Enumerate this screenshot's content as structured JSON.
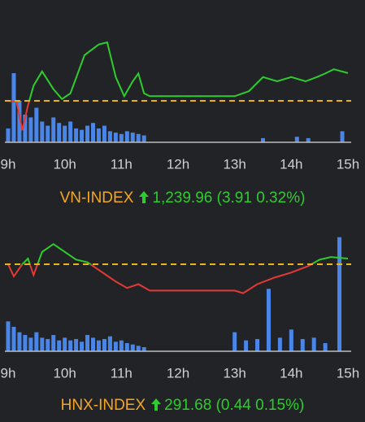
{
  "chart_data": [
    {
      "type": "line",
      "title": "VN-INDEX",
      "last_label": "1,239.96",
      "change_label": "(3.91 0.32%)",
      "x": [
        9.0,
        9.15,
        9.25,
        9.35,
        9.45,
        9.6,
        9.8,
        9.95,
        10.1,
        10.35,
        10.6,
        10.75,
        10.9,
        11.05,
        11.2,
        11.3,
        11.4,
        11.5,
        13.0,
        13.25,
        13.5,
        13.75,
        14.0,
        14.25,
        14.45,
        14.6,
        14.75,
        15.0
      ],
      "values": [
        1236.05,
        1235.9,
        1231.9,
        1235.4,
        1238.2,
        1240.2,
        1237.7,
        1236.3,
        1237.1,
        1242.5,
        1244.0,
        1244.3,
        1239.4,
        1236.7,
        1238.8,
        1239.9,
        1237.1,
        1236.7,
        1236.7,
        1237.4,
        1239.4,
        1238.8,
        1239.4,
        1238.8,
        1239.4,
        1239.9,
        1240.5,
        1239.96
      ],
      "reference": 1236.05,
      "up_color": "#2ecc2e",
      "down_color": "#e53935",
      "reference_color": "#e6b422",
      "xlim": [
        9,
        15
      ],
      "ylim": [
        1230.2,
        1249.7
      ],
      "xticks": [
        {
          "value": 9,
          "label": "9h"
        },
        {
          "value": 10,
          "label": "10h"
        },
        {
          "value": 11,
          "label": "11h"
        },
        {
          "value": 12,
          "label": "12h"
        },
        {
          "value": 13,
          "label": "13h"
        },
        {
          "value": 14,
          "label": "14h"
        },
        {
          "value": 15,
          "label": "15h"
        }
      ],
      "volume": {
        "color": "#4a86e8",
        "x": [
          9.0,
          9.1,
          9.2,
          9.3,
          9.4,
          9.5,
          9.6,
          9.7,
          9.8,
          9.9,
          10.0,
          10.1,
          10.2,
          10.3,
          10.4,
          10.5,
          10.6,
          10.7,
          10.8,
          10.9,
          11.0,
          11.1,
          11.2,
          11.3,
          11.4,
          13.5,
          14.1,
          14.3,
          14.9
        ],
        "values": [
          10,
          50,
          30,
          20,
          18,
          25,
          15,
          12,
          18,
          14,
          12,
          15,
          10,
          9,
          12,
          14,
          10,
          12,
          8,
          7,
          6,
          8,
          7,
          6,
          5,
          3,
          4,
          3,
          8
        ]
      },
      "y2lim": [
        0,
        100
      ]
    },
    {
      "type": "line",
      "title": "HNX-INDEX",
      "last_label": "291.68",
      "change_label": "(0.44 0.15%)",
      "x": [
        9.0,
        9.1,
        9.25,
        9.35,
        9.45,
        9.6,
        9.8,
        10.0,
        10.2,
        10.4,
        10.6,
        10.9,
        11.1,
        11.3,
        11.5,
        13.0,
        13.15,
        13.4,
        13.7,
        14.0,
        14.3,
        14.5,
        14.7,
        15.0
      ],
      "values": [
        291.24,
        290.3,
        291.24,
        291.68,
        290.4,
        292.2,
        292.8,
        292.2,
        291.6,
        291.4,
        290.8,
        289.9,
        289.4,
        289.7,
        289.2,
        289.2,
        289.0,
        289.7,
        290.2,
        290.6,
        291.1,
        291.6,
        291.8,
        291.68
      ],
      "reference": 291.24,
      "up_color": "#2ecc2e",
      "down_color": "#e53935",
      "reference_color": "#e6b422",
      "xlim": [
        9,
        15
      ],
      "ylim": [
        284.5,
        295.02
      ],
      "xticks": [
        {
          "value": 9,
          "label": "9h"
        },
        {
          "value": 10,
          "label": "10h"
        },
        {
          "value": 11,
          "label": "11h"
        },
        {
          "value": 12,
          "label": "12h"
        },
        {
          "value": 13,
          "label": "13h"
        },
        {
          "value": 14,
          "label": "14h"
        },
        {
          "value": 15,
          "label": "15h"
        }
      ],
      "volume": {
        "color": "#4a86e8",
        "x": [
          9.0,
          9.1,
          9.2,
          9.3,
          9.4,
          9.5,
          9.6,
          9.7,
          9.8,
          9.9,
          10.0,
          10.1,
          10.2,
          10.3,
          10.4,
          10.5,
          10.6,
          10.7,
          10.8,
          10.9,
          11.0,
          11.1,
          11.2,
          11.3,
          11.4,
          13.0,
          13.2,
          13.4,
          13.6,
          13.8,
          14.0,
          14.2,
          14.4,
          14.6,
          14.85
        ],
        "values": [
          22,
          18,
          14,
          12,
          10,
          14,
          10,
          9,
          12,
          8,
          10,
          8,
          9,
          7,
          12,
          10,
          8,
          9,
          11,
          7,
          8,
          6,
          5,
          4,
          3,
          14,
          8,
          9,
          46,
          10,
          16,
          9,
          10,
          6,
          84
        ]
      },
      "y2lim": [
        0,
        100
      ]
    }
  ]
}
